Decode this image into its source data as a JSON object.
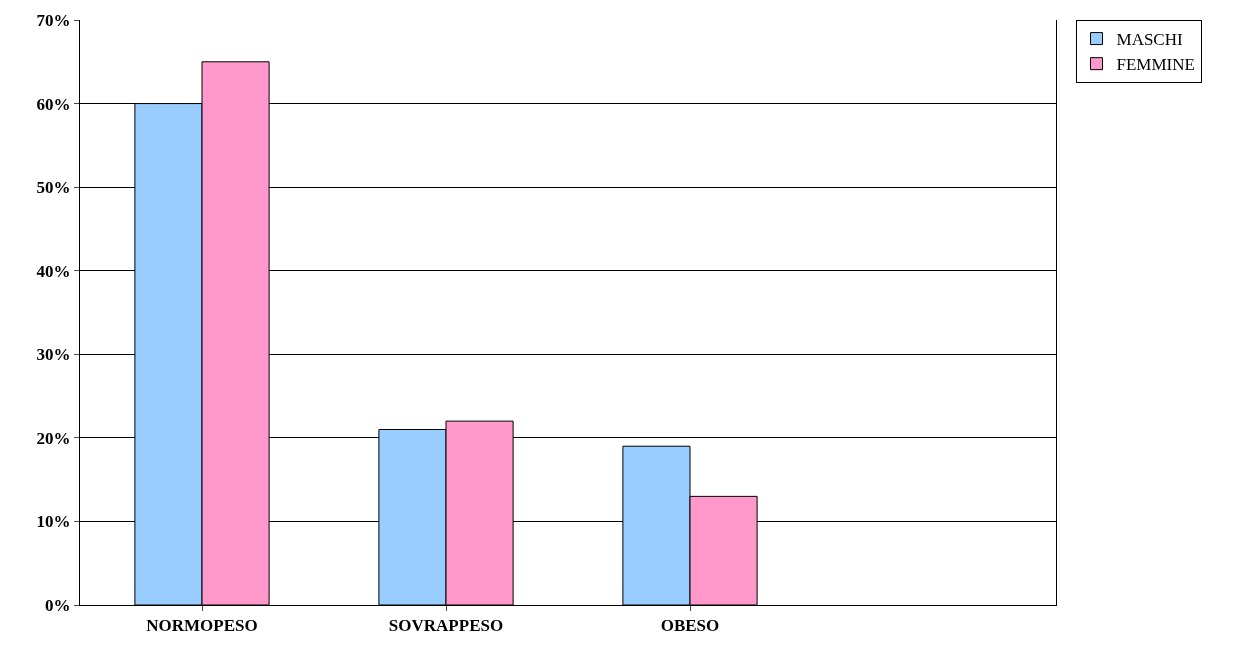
{
  "chart_data": {
    "type": "bar",
    "categories": [
      "NORMOPESO",
      "SOVRAPPESO",
      "OBESO",
      null
    ],
    "series": [
      {
        "name": "MASCHI",
        "color": "#99ccff",
        "values": [
          60,
          21,
          19,
          null
        ]
      },
      {
        "name": "FEMMINE",
        "color": "#ff99cc",
        "values": [
          65,
          22,
          13,
          null
        ]
      }
    ],
    "ylim": [
      0,
      70
    ],
    "yticks": [
      {
        "value": 0,
        "label": "0%"
      },
      {
        "value": 10,
        "label": "10%"
      },
      {
        "value": 20,
        "label": "20%"
      },
      {
        "value": 30,
        "label": "30%"
      },
      {
        "value": 40,
        "label": "40%"
      },
      {
        "value": 50,
        "label": "50%"
      },
      {
        "value": 60,
        "label": "60%"
      },
      {
        "value": 70,
        "label": "70%"
      }
    ],
    "grid": "y",
    "legend": "top right"
  }
}
